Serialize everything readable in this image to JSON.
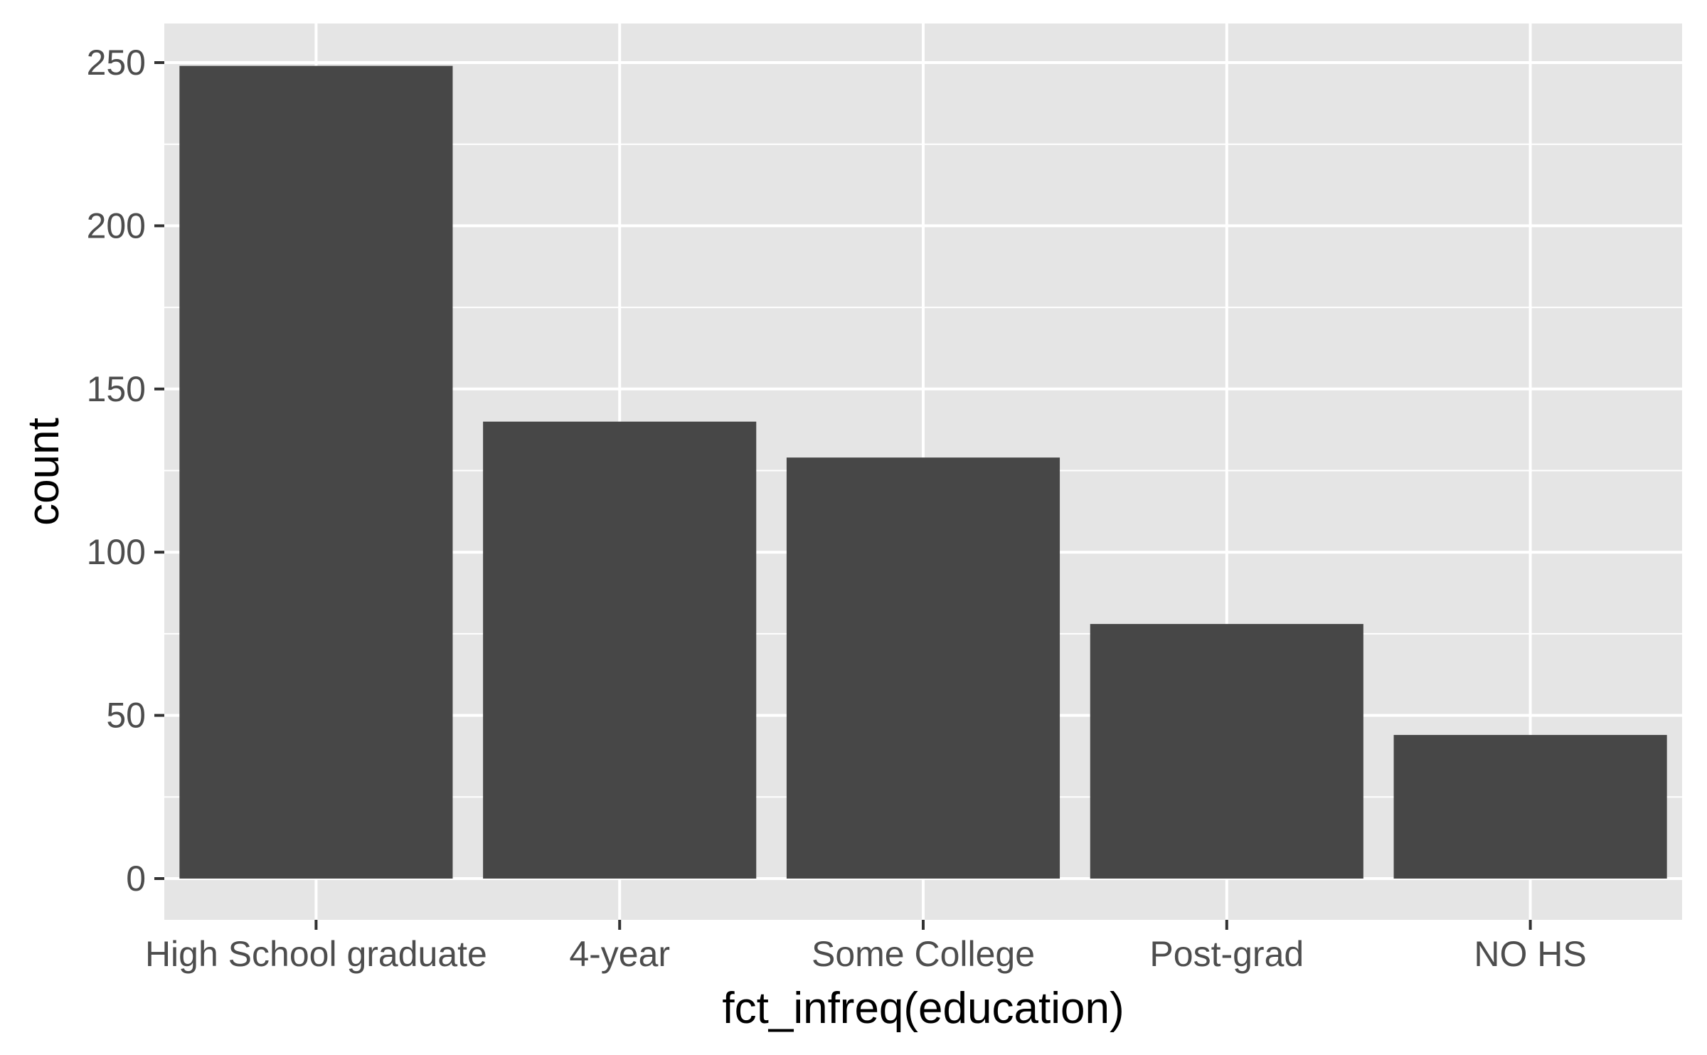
{
  "chart_data": {
    "type": "bar",
    "title": "",
    "xlabel": "fct_infreq(education)",
    "ylabel": "count",
    "categories": [
      "High School graduate",
      "4-year",
      "Some College",
      "Post-grad",
      "NO HS"
    ],
    "values": [
      249,
      140,
      129,
      78,
      44
    ],
    "ylim": [
      0,
      262.5
    ],
    "yticks": [
      0,
      50,
      100,
      150,
      200,
      250
    ],
    "ytick_labels": [
      "0",
      "50",
      "100",
      "150",
      "200",
      "250"
    ],
    "grid": true,
    "legend": "none",
    "colors": {
      "bar": "#474747",
      "panel": "#e5e5e5",
      "grid": "#ffffff",
      "tick": "#333333",
      "tick_label": "#4d4d4d",
      "axis_title": "#000000"
    }
  }
}
